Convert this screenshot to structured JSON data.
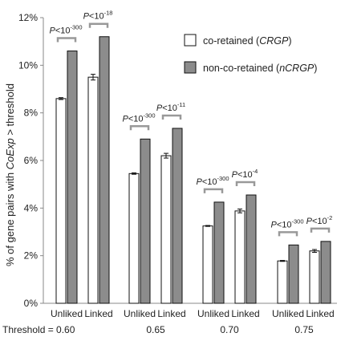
{
  "chart_data": {
    "type": "bar",
    "ylabel_parts": [
      {
        "text": "% of gene pairs with ",
        "italic": false
      },
      {
        "text": "CoExp",
        "italic": true
      },
      {
        "text": " > threshold",
        "italic": false
      }
    ],
    "ylim": [
      0,
      12
    ],
    "yticks": [
      0,
      2,
      4,
      6,
      8,
      10,
      12
    ],
    "ytick_labels": [
      "0%",
      "2%",
      "4%",
      "6%",
      "8%",
      "10%",
      "12%"
    ],
    "threshold_prefix": "Threshold = ",
    "groups": [
      {
        "threshold": "0.60",
        "subgroups": [
          {
            "label": "Unliked",
            "crgp": 8.6,
            "crgp_err": 0.04,
            "ncrgp": 10.6,
            "pvalue_exp": "-300"
          },
          {
            "label": "Linked",
            "crgp": 9.5,
            "crgp_err": 0.12,
            "ncrgp": 11.2,
            "pvalue_exp": "-18"
          }
        ]
      },
      {
        "threshold": "0.65",
        "subgroups": [
          {
            "label": "Unliked",
            "crgp": 5.45,
            "crgp_err": 0.03,
            "ncrgp": 6.9,
            "pvalue_exp": "-300"
          },
          {
            "label": "Linked",
            "crgp": 6.2,
            "crgp_err": 0.1,
            "ncrgp": 7.35,
            "pvalue_exp": "-11"
          }
        ]
      },
      {
        "threshold": "0.70",
        "subgroups": [
          {
            "label": "Unliked",
            "crgp": 3.25,
            "crgp_err": 0.02,
            "ncrgp": 4.25,
            "pvalue_exp": "-300"
          },
          {
            "label": "Linked",
            "crgp": 3.88,
            "crgp_err": 0.08,
            "ncrgp": 4.55,
            "pvalue_exp": "-4"
          }
        ]
      },
      {
        "threshold": "0.75",
        "subgroups": [
          {
            "label": "Unliked",
            "crgp": 1.78,
            "crgp_err": 0.02,
            "ncrgp": 2.45,
            "pvalue_exp": "-300"
          },
          {
            "label": "Linked",
            "crgp": 2.2,
            "crgp_err": 0.06,
            "ncrgp": 2.6,
            "pvalue_exp": "-2"
          }
        ]
      }
    ],
    "pvalue_prefix": "P",
    "pvalue_mid": "<10",
    "legend": [
      {
        "text": "co-retained (",
        "italic_text": "CRGP",
        "suffix": ")",
        "color": "#ffffff"
      },
      {
        "text": "non-co-retained (",
        "italic_text": "nCRGP",
        "suffix": ")",
        "color": "#8c8c8c"
      }
    ],
    "legend_position": "top-right",
    "grid": false,
    "colors": {
      "crgp_fill": "#ffffff",
      "ncrgp_fill": "#8c8c8c",
      "bar_stroke": "#111111",
      "axis": "#888888",
      "bracket": "#999999"
    }
  }
}
